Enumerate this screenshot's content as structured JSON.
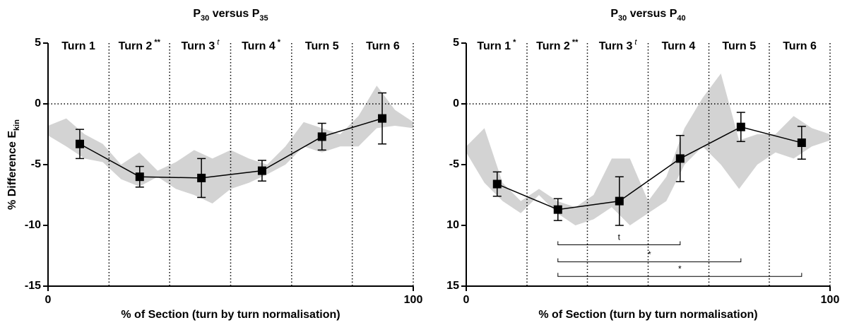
{
  "chart_data": [
    {
      "type": "line",
      "title": [
        "P",
        "30",
        " versus P",
        "35"
      ],
      "y_label": [
        "% Difference E",
        "kin"
      ],
      "x_label": "% of Section (turn by turn normalisation)",
      "xlim": [
        0,
        100
      ],
      "xticks": [
        0,
        100
      ],
      "ylim": [
        -15,
        5
      ],
      "yticks": [
        5,
        0,
        -5,
        -10,
        -15
      ],
      "zero_line": true,
      "dividers": [
        16.7,
        33.3,
        50,
        66.7,
        83.3
      ],
      "turns": [
        {
          "label": "Turn 1"
        },
        {
          "label": "Turn 2",
          "sig": "**"
        },
        {
          "label": "Turn 3",
          "sig": "t",
          "italic": true
        },
        {
          "label": "Turn 4",
          "sig": "*"
        },
        {
          "label": "Turn 5"
        },
        {
          "label": "Turn 6"
        }
      ],
      "band": {
        "color": "#d3d3d3",
        "x": [
          0,
          5,
          10,
          15,
          20,
          25,
          30,
          35,
          40,
          45,
          50,
          55,
          60,
          65,
          70,
          75,
          80,
          85,
          90,
          95,
          100
        ],
        "upper": [
          -1.8,
          -1.2,
          -2.5,
          -3.3,
          -5.0,
          -4.0,
          -5.5,
          -4.8,
          -3.8,
          -4.5,
          -3.8,
          -4.5,
          -5.0,
          -3.5,
          -1.5,
          -2.0,
          -2.5,
          -1.0,
          1.5,
          -0.5,
          -1.5
        ],
        "lower": [
          -2.6,
          -3.5,
          -4.5,
          -4.8,
          -6.2,
          -6.8,
          -6.0,
          -7.0,
          -7.5,
          -8.2,
          -7.0,
          -6.5,
          -5.8,
          -5.0,
          -3.5,
          -4.0,
          -3.5,
          -3.5,
          -2.0,
          -1.8,
          -2.0
        ]
      },
      "series": [
        {
          "color": "#000000",
          "x": [
            8.7,
            25.1,
            42.0,
            58.6,
            75.0,
            91.5
          ],
          "values": [
            -3.3,
            -6.0,
            -6.1,
            -5.5,
            -2.7,
            -1.2
          ],
          "errors": [
            1.2,
            0.85,
            1.6,
            0.85,
            1.1,
            2.1
          ]
        }
      ]
    },
    {
      "type": "line",
      "title": [
        "P",
        "30",
        " versus P",
        "40"
      ],
      "x_label": "% of Section (turn by turn normalisation)",
      "xlim": [
        0,
        100
      ],
      "xticks": [
        0,
        100
      ],
      "ylim": [
        -15,
        5
      ],
      "yticks": [
        5,
        0,
        -5,
        {
          "value": -10,
          "label": "10"
        },
        {
          "value": -15,
          "label": "15"
        }
      ],
      "zero_line": true,
      "dividers": [
        16.7,
        33.3,
        50,
        66.7,
        83.3
      ],
      "turns": [
        {
          "label": "Turn 1",
          "sig": "*"
        },
        {
          "label": "Turn 2",
          "sig": "**"
        },
        {
          "label": "Turn 3",
          "sig": "t",
          "italic": true
        },
        {
          "label": "Turn 4"
        },
        {
          "label": "Turn 5"
        },
        {
          "label": "Turn 6"
        }
      ],
      "band": {
        "color": "#d3d3d3",
        "x": [
          0,
          5,
          10,
          15,
          20,
          25,
          30,
          35,
          40,
          45,
          50,
          55,
          60,
          65,
          70,
          75,
          80,
          85,
          90,
          95,
          100
        ],
        "upper": [
          -3.5,
          -2.0,
          -6.5,
          -8.0,
          -7.0,
          -8.0,
          -8.5,
          -7.5,
          -4.5,
          -4.5,
          -8.0,
          -6.0,
          -2.0,
          0.5,
          2.5,
          -3.0,
          -2.5,
          -2.5,
          -1.0,
          -2.0,
          -2.5
        ],
        "lower": [
          -4.0,
          -6.5,
          -8.0,
          -9.0,
          -7.5,
          -9.0,
          -10.0,
          -9.5,
          -8.5,
          -10.0,
          -9.0,
          -8.0,
          -5.0,
          -3.5,
          -5.0,
          -7.0,
          -5.0,
          -4.0,
          -4.5,
          -3.5,
          -3.0
        ]
      },
      "series": [
        {
          "color": "#000000",
          "x": [
            8.5,
            25.2,
            42.1,
            58.8,
            75.5,
            92.2
          ],
          "values": [
            -6.6,
            -8.7,
            -8.0,
            -4.5,
            -1.9,
            -3.2
          ],
          "errors": [
            1.0,
            0.9,
            2.0,
            1.9,
            1.2,
            1.35
          ]
        }
      ],
      "annotations": [
        {
          "text": "t",
          "x": [
            25.2,
            58.8
          ],
          "y": -11.6
        },
        {
          "text": "*",
          "x": [
            25.2,
            75.5
          ],
          "y": -13.0
        },
        {
          "text": "*",
          "x": [
            25.2,
            92.2
          ],
          "y": -14.2
        }
      ]
    }
  ]
}
